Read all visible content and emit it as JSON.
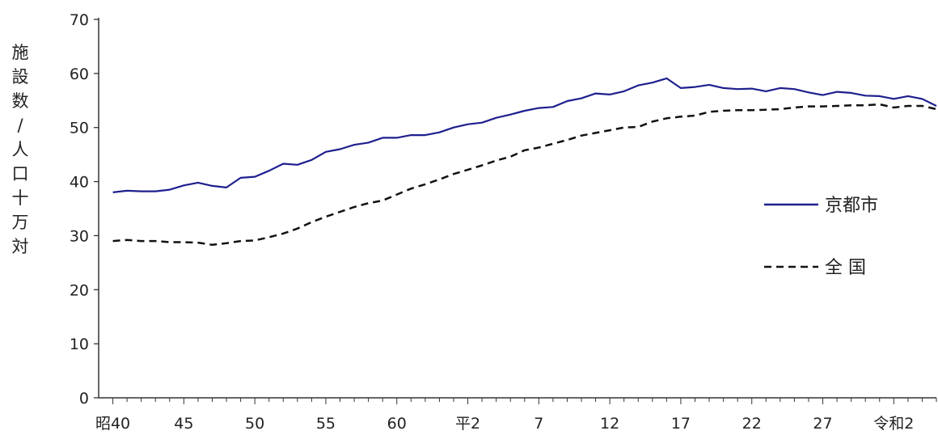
{
  "chart_data": {
    "type": "line",
    "ylabel": "施設数/人口十万対",
    "ylim": [
      0,
      70
    ],
    "y_ticks": [
      0,
      10,
      20,
      30,
      40,
      50,
      60,
      70
    ],
    "x_tick_labels": [
      "昭40",
      "45",
      "50",
      "55",
      "60",
      "平2",
      "7",
      "12",
      "17",
      "22",
      "27",
      "令和2"
    ],
    "x_tick_years": [
      1965,
      1970,
      1975,
      1980,
      1985,
      1990,
      1995,
      2000,
      2005,
      2010,
      2015,
      2020
    ],
    "xlim": [
      1964,
      2023
    ],
    "legend_position": "right",
    "grid": false,
    "series": [
      {
        "name": "京都市",
        "color": "#1f1f8f",
        "style": "solid",
        "x": [
          1965,
          1966,
          1967,
          1968,
          1969,
          1970,
          1971,
          1972,
          1973,
          1974,
          1975,
          1976,
          1977,
          1978,
          1979,
          1980,
          1981,
          1982,
          1983,
          1984,
          1985,
          1986,
          1987,
          1988,
          1989,
          1990,
          1991,
          1992,
          1993,
          1994,
          1995,
          1996,
          1997,
          1998,
          1999,
          2000,
          2001,
          2002,
          2003,
          2004,
          2005,
          2006,
          2007,
          2008,
          2009,
          2010,
          2011,
          2012,
          2013,
          2014,
          2015,
          2016,
          2017,
          2018,
          2019,
          2020,
          2021,
          2022,
          2023
        ],
        "values": [
          38.0,
          38.3,
          38.2,
          38.2,
          38.5,
          39.3,
          39.8,
          39.2,
          38.9,
          40.7,
          40.9,
          42.0,
          43.3,
          43.1,
          44.0,
          45.5,
          46.0,
          46.8,
          47.2,
          48.1,
          48.1,
          48.6,
          48.6,
          49.1,
          50.0,
          50.6,
          50.9,
          51.8,
          52.4,
          53.1,
          53.6,
          53.8,
          54.9,
          55.4,
          56.3,
          56.1,
          56.7,
          57.8,
          58.3,
          59.1,
          57.3,
          57.5,
          57.9,
          57.3,
          57.1,
          57.2,
          56.7,
          57.3,
          57.1,
          56.5,
          56.0,
          56.6,
          56.4,
          55.9,
          55.8,
          55.3,
          55.8,
          55.3,
          54.0
        ]
      },
      {
        "name": "全 国",
        "color": "#111111",
        "style": "dashed",
        "x": [
          1965,
          1966,
          1967,
          1968,
          1969,
          1970,
          1971,
          1972,
          1973,
          1974,
          1975,
          1976,
          1977,
          1978,
          1979,
          1980,
          1981,
          1982,
          1983,
          1984,
          1985,
          1986,
          1987,
          1988,
          1989,
          1990,
          1991,
          1992,
          1993,
          1994,
          1995,
          1996,
          1997,
          1998,
          1999,
          2000,
          2001,
          2002,
          2003,
          2004,
          2005,
          2006,
          2007,
          2008,
          2009,
          2010,
          2011,
          2012,
          2013,
          2014,
          2015,
          2016,
          2017,
          2018,
          2019,
          2020,
          2021,
          2022,
          2023
        ],
        "values": [
          29.0,
          29.2,
          29.0,
          29.0,
          28.8,
          28.8,
          28.7,
          28.3,
          28.6,
          29.0,
          29.1,
          29.7,
          30.4,
          31.3,
          32.5,
          33.5,
          34.4,
          35.3,
          36.0,
          36.5,
          37.6,
          38.7,
          39.5,
          40.4,
          41.4,
          42.2,
          43.0,
          43.9,
          44.6,
          45.8,
          46.3,
          47.0,
          47.7,
          48.5,
          49.0,
          49.5,
          50.0,
          50.1,
          51.1,
          51.7,
          52.0,
          52.2,
          52.9,
          53.1,
          53.2,
          53.2,
          53.3,
          53.4,
          53.7,
          53.9,
          53.9,
          54.0,
          54.1,
          54.1,
          54.3,
          53.7,
          54.0,
          54.0,
          53.4
        ]
      }
    ]
  }
}
